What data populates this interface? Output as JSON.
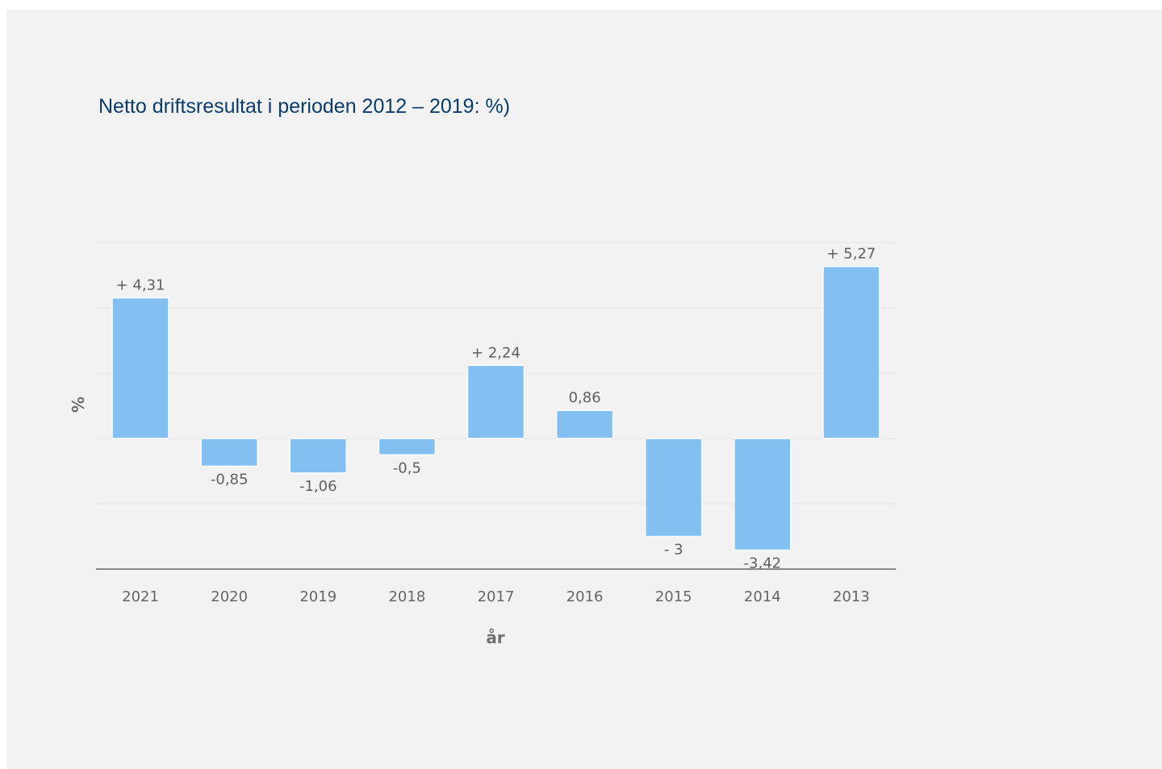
{
  "chart_data": {
    "type": "bar",
    "title": "Netto driftsresultat i perioden 2012 – 2019: %)",
    "xlabel": "år",
    "ylabel": "%",
    "categories": [
      "2021",
      "2020",
      "2019",
      "2018",
      "2017",
      "2016",
      "2015",
      "2014",
      "2013"
    ],
    "values": [
      4.31,
      -0.85,
      -1.06,
      -0.5,
      2.24,
      0.86,
      -3,
      -3.42,
      5.27
    ],
    "data_labels": [
      "+ 4,31",
      "-0,85",
      "-1,06",
      "-0,5",
      "+ 2,24",
      "0,86",
      "- 3",
      "-3,42",
      "+ 5,27"
    ],
    "ylim": [
      -4,
      6
    ],
    "y_gridlines": [
      -4,
      -2,
      0,
      2,
      4,
      6
    ],
    "grid": true,
    "legend": "none",
    "colors": {
      "bar": "#83bff1",
      "title": "#0b3d6b",
      "background": "#f2f2f2",
      "gridline": "#e2e2e2",
      "axis_line": "#666666"
    }
  }
}
